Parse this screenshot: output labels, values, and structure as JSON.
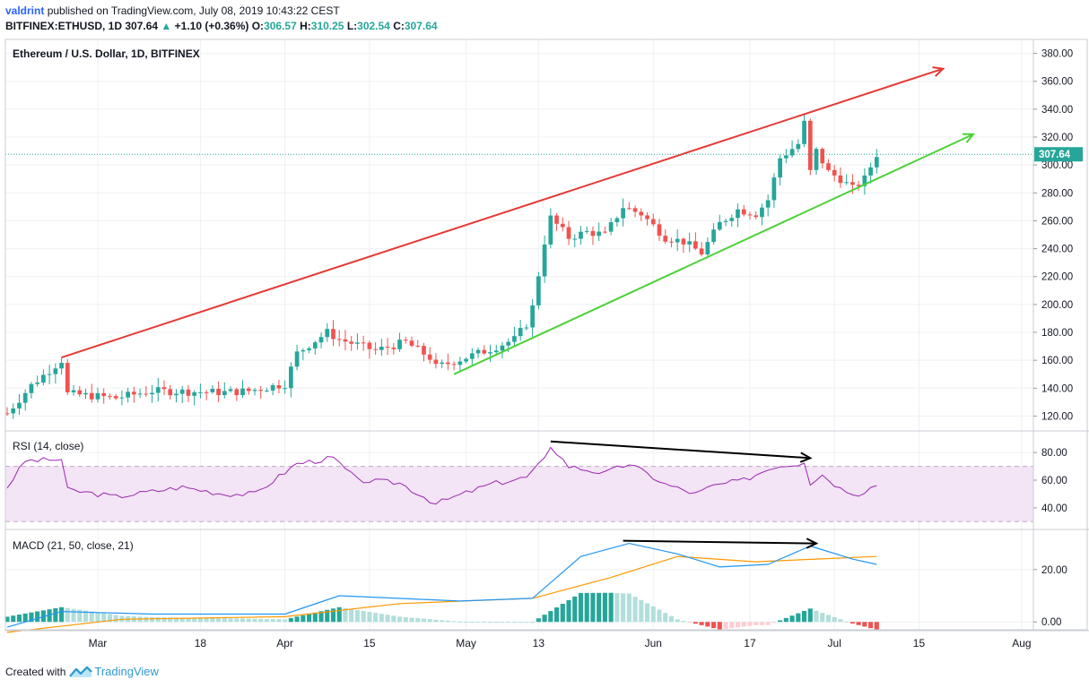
{
  "header": {
    "author": "valdrint",
    "published_text": "published on TradingView.com, July 08, 2019 10:43:22 CEST",
    "symbol_line": "BITFINEX:ETHUSD, 1D",
    "last": "307.64",
    "change_arrow": "▲",
    "change": "+1.10 (+0.36%)",
    "o_label": "O:",
    "o_val": "306.57",
    "h_label": "H:",
    "h_val": "310.25",
    "l_label": "L:",
    "l_val": "302.54",
    "c_label": "C:",
    "c_val": "307.64"
  },
  "footer": {
    "created_with": "Created with",
    "brand": "TradingView"
  },
  "colors": {
    "up": "#26a69a",
    "down": "#ef5350",
    "resistance": "#e53935",
    "support": "#4cd137",
    "rsi": "#9c27b0",
    "rsi_band": "#f3e5f5",
    "macd": "#2196f3",
    "signal": "#ff9800",
    "divergence": "#000000",
    "price_line": "#26a69a"
  },
  "chart_data": [
    {
      "type": "candlestick",
      "title": "Ethereum / U.S. Dollar, 1D, BITFINEX",
      "ylim": [
        110,
        390
      ],
      "y_ticks": [
        "120.00",
        "140.00",
        "160.00",
        "180.00",
        "200.00",
        "220.00",
        "240.00",
        "260.00",
        "280.00",
        "300.00",
        "320.00",
        "340.00",
        "360.00",
        "380.00"
      ],
      "x_ticks": [
        {
          "label": "Mar",
          "date": "2019-03-01"
        },
        {
          "label": "18",
          "date": "2019-03-18"
        },
        {
          "label": "Apr",
          "date": "2019-04-01"
        },
        {
          "label": "15",
          "date": "2019-04-15"
        },
        {
          "label": "May",
          "date": "2019-05-01"
        },
        {
          "label": "13",
          "date": "2019-05-13"
        },
        {
          "label": "Jun",
          "date": "2019-06-01"
        },
        {
          "label": "17",
          "date": "2019-06-17"
        },
        {
          "label": "Jul",
          "date": "2019-07-01"
        },
        {
          "label": "15",
          "date": "2019-07-15"
        },
        {
          "label": "Aug",
          "date": "2019-08-01"
        }
      ],
      "last_price_label": "307.64",
      "last_price": 307.64,
      "anchors": [
        {
          "date": "2019-02-14",
          "price": 122
        },
        {
          "date": "2019-02-18",
          "price": 142
        },
        {
          "date": "2019-02-23",
          "price": 160
        },
        {
          "date": "2019-02-24",
          "price": 136
        },
        {
          "date": "2019-03-04",
          "price": 133
        },
        {
          "date": "2019-03-10",
          "price": 138
        },
        {
          "date": "2019-03-22",
          "price": 137
        },
        {
          "date": "2019-03-26",
          "price": 138
        },
        {
          "date": "2019-04-01",
          "price": 143
        },
        {
          "date": "2019-04-03",
          "price": 165
        },
        {
          "date": "2019-04-08",
          "price": 180
        },
        {
          "date": "2019-04-10",
          "price": 175
        },
        {
          "date": "2019-04-16",
          "price": 167
        },
        {
          "date": "2019-04-21",
          "price": 173
        },
        {
          "date": "2019-04-25",
          "price": 162
        },
        {
          "date": "2019-04-26",
          "price": 155
        },
        {
          "date": "2019-05-01",
          "price": 162
        },
        {
          "date": "2019-05-05",
          "price": 168
        },
        {
          "date": "2019-05-09",
          "price": 175
        },
        {
          "date": "2019-05-11",
          "price": 186
        },
        {
          "date": "2019-05-12",
          "price": 198
        },
        {
          "date": "2019-05-14",
          "price": 245
        },
        {
          "date": "2019-05-15",
          "price": 262
        },
        {
          "date": "2019-05-18",
          "price": 248
        },
        {
          "date": "2019-05-21",
          "price": 252
        },
        {
          "date": "2019-05-24",
          "price": 250
        },
        {
          "date": "2019-05-27",
          "price": 270
        },
        {
          "date": "2019-05-30",
          "price": 265
        },
        {
          "date": "2019-06-03",
          "price": 248
        },
        {
          "date": "2019-06-06",
          "price": 245
        },
        {
          "date": "2019-06-09",
          "price": 237
        },
        {
          "date": "2019-06-12",
          "price": 258
        },
        {
          "date": "2019-06-15",
          "price": 268
        },
        {
          "date": "2019-06-18",
          "price": 265
        },
        {
          "date": "2019-06-20",
          "price": 275
        },
        {
          "date": "2019-06-22",
          "price": 305
        },
        {
          "date": "2019-06-25",
          "price": 315
        },
        {
          "date": "2019-06-26",
          "price": 330
        },
        {
          "date": "2019-06-27",
          "price": 295
        },
        {
          "date": "2019-06-28",
          "price": 310
        },
        {
          "date": "2019-06-30",
          "price": 295
        },
        {
          "date": "2019-07-02",
          "price": 290
        },
        {
          "date": "2019-07-04",
          "price": 283
        },
        {
          "date": "2019-07-06",
          "price": 290
        },
        {
          "date": "2019-07-08",
          "price": 307.64
        }
      ],
      "trendlines": [
        {
          "name": "resistance",
          "from": {
            "date": "2019-02-23",
            "price": 162
          },
          "to": {
            "date": "2019-07-19",
            "price": 369
          },
          "arrow": true
        },
        {
          "name": "support",
          "from": {
            "date": "2019-04-29",
            "price": 150
          },
          "to": {
            "date": "2019-07-24",
            "price": 322
          },
          "arrow": true
        }
      ]
    },
    {
      "type": "line",
      "title": "RSI (14, close)",
      "ylim": [
        25,
        95
      ],
      "y_ticks": [
        "40.00",
        "60.00",
        "80.00"
      ],
      "band": [
        30,
        70
      ],
      "anchors": [
        {
          "date": "2019-02-14",
          "value": 55
        },
        {
          "date": "2019-02-17",
          "value": 74
        },
        {
          "date": "2019-02-23",
          "value": 75
        },
        {
          "date": "2019-02-24",
          "value": 53
        },
        {
          "date": "2019-03-04",
          "value": 48
        },
        {
          "date": "2019-03-15",
          "value": 55
        },
        {
          "date": "2019-03-22",
          "value": 50
        },
        {
          "date": "2019-03-27",
          "value": 50
        },
        {
          "date": "2019-04-03",
          "value": 72
        },
        {
          "date": "2019-04-09",
          "value": 76
        },
        {
          "date": "2019-04-13",
          "value": 60
        },
        {
          "date": "2019-04-20",
          "value": 58
        },
        {
          "date": "2019-04-26",
          "value": 43
        },
        {
          "date": "2019-05-05",
          "value": 57
        },
        {
          "date": "2019-05-11",
          "value": 62
        },
        {
          "date": "2019-05-14",
          "value": 75
        },
        {
          "date": "2019-05-15",
          "value": 85
        },
        {
          "date": "2019-05-18",
          "value": 70
        },
        {
          "date": "2019-05-24",
          "value": 65
        },
        {
          "date": "2019-05-28",
          "value": 72
        },
        {
          "date": "2019-06-03",
          "value": 57
        },
        {
          "date": "2019-06-08",
          "value": 50
        },
        {
          "date": "2019-06-11",
          "value": 56
        },
        {
          "date": "2019-06-16",
          "value": 60
        },
        {
          "date": "2019-06-21",
          "value": 70
        },
        {
          "date": "2019-06-25",
          "value": 72
        },
        {
          "date": "2019-06-26",
          "value": 74
        },
        {
          "date": "2019-06-27",
          "value": 58
        },
        {
          "date": "2019-06-29",
          "value": 64
        },
        {
          "date": "2019-07-02",
          "value": 54
        },
        {
          "date": "2019-07-05",
          "value": 50
        },
        {
          "date": "2019-07-08",
          "value": 57
        }
      ],
      "divergence": {
        "from": {
          "date": "2019-05-15",
          "value": 88
        },
        "to": {
          "date": "2019-06-27",
          "value": 76
        }
      }
    },
    {
      "type": "line+histogram",
      "title": "MACD (21, 50, close, 21)",
      "ylim": [
        -3,
        35
      ],
      "y_ticks": [
        "0.00",
        "20.00"
      ],
      "macd_anchors": [
        {
          "date": "2019-02-14",
          "value": -2
        },
        {
          "date": "2019-02-23",
          "value": 4
        },
        {
          "date": "2019-03-10",
          "value": 3
        },
        {
          "date": "2019-04-01",
          "value": 3
        },
        {
          "date": "2019-04-10",
          "value": 10
        },
        {
          "date": "2019-04-30",
          "value": 8
        },
        {
          "date": "2019-05-12",
          "value": 9
        },
        {
          "date": "2019-05-20",
          "value": 25
        },
        {
          "date": "2019-05-28",
          "value": 30
        },
        {
          "date": "2019-06-05",
          "value": 26
        },
        {
          "date": "2019-06-12",
          "value": 21
        },
        {
          "date": "2019-06-20",
          "value": 22
        },
        {
          "date": "2019-06-27",
          "value": 29
        },
        {
          "date": "2019-07-04",
          "value": 24
        },
        {
          "date": "2019-07-08",
          "value": 22
        }
      ],
      "signal_anchors": [
        {
          "date": "2019-02-14",
          "value": -4
        },
        {
          "date": "2019-03-05",
          "value": 1
        },
        {
          "date": "2019-04-01",
          "value": 2
        },
        {
          "date": "2019-04-20",
          "value": 7
        },
        {
          "date": "2019-05-12",
          "value": 9
        },
        {
          "date": "2019-05-25",
          "value": 17
        },
        {
          "date": "2019-06-05",
          "value": 25
        },
        {
          "date": "2019-06-18",
          "value": 23
        },
        {
          "date": "2019-06-28",
          "value": 24
        },
        {
          "date": "2019-07-08",
          "value": 25
        }
      ],
      "divergence": {
        "from": {
          "date": "2019-05-27",
          "value": 31
        },
        "to": {
          "date": "2019-06-28",
          "value": 30
        }
      }
    }
  ]
}
